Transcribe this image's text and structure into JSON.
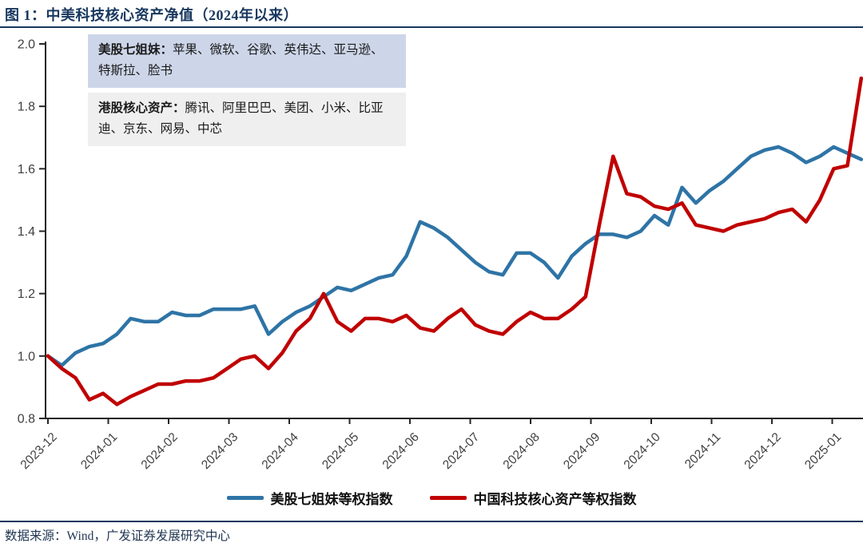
{
  "title": "图 1：中美科技核心资产净值（2024年以来）",
  "source": "数据来源：Wind，广发证券发展研究中心",
  "info_boxes": [
    {
      "label": "美股七姐妹：",
      "text": "苹果、微软、谷歌、英伟达、亚马逊、特斯拉、脸书",
      "bg": "#cdd6e9"
    },
    {
      "label": "港股核心资产：",
      "text": "腾讯、阿里巴巴、美团、小米、比亚迪、京东、网易、中芯",
      "bg": "#efefef"
    }
  ],
  "colors": {
    "title_navy": "#17375e",
    "axis": "#262626",
    "tick_text": "#3f3f3f",
    "us_line": "#2e74a6",
    "cn_line": "#c00000"
  },
  "chart_data": {
    "type": "line",
    "title": "中美科技核心资产净值（2024年以来）",
    "xlabel": "",
    "ylabel": "",
    "ylim": [
      0.8,
      2.0
    ],
    "y_ticks": [
      0.8,
      1.0,
      1.2,
      1.4,
      1.6,
      1.8,
      2.0
    ],
    "x_tick_labels": [
      "2023-12",
      "2024-01",
      "2024-02",
      "2024-03",
      "2024-04",
      "2024-05",
      "2024-06",
      "2024-07",
      "2024-08",
      "2024-09",
      "2024-10",
      "2024-11",
      "2024-12",
      "2025-01"
    ],
    "grid": false,
    "legend_position": "bottom",
    "x_unit": "week",
    "series": [
      {
        "name": "美股七姐妹等权指数",
        "color": "#2e74a6",
        "values": [
          1.0,
          0.97,
          1.01,
          1.03,
          1.04,
          1.07,
          1.12,
          1.11,
          1.11,
          1.14,
          1.13,
          1.13,
          1.15,
          1.15,
          1.15,
          1.16,
          1.07,
          1.11,
          1.14,
          1.16,
          1.19,
          1.22,
          1.21,
          1.23,
          1.25,
          1.26,
          1.32,
          1.43,
          1.41,
          1.38,
          1.34,
          1.3,
          1.27,
          1.26,
          1.33,
          1.33,
          1.3,
          1.25,
          1.32,
          1.36,
          1.39,
          1.39,
          1.38,
          1.4,
          1.45,
          1.42,
          1.54,
          1.49,
          1.53,
          1.56,
          1.6,
          1.64,
          1.66,
          1.67,
          1.65,
          1.62,
          1.64,
          1.67,
          1.65,
          1.63
        ]
      },
      {
        "name": "中国科技核心资产等权指数",
        "color": "#c00000",
        "values": [
          1.0,
          0.96,
          0.93,
          0.86,
          0.88,
          0.845,
          0.87,
          0.89,
          0.91,
          0.91,
          0.92,
          0.92,
          0.93,
          0.96,
          0.99,
          1.0,
          0.96,
          1.01,
          1.08,
          1.12,
          1.2,
          1.11,
          1.08,
          1.12,
          1.12,
          1.11,
          1.13,
          1.09,
          1.08,
          1.12,
          1.15,
          1.1,
          1.08,
          1.07,
          1.11,
          1.14,
          1.12,
          1.12,
          1.15,
          1.19,
          1.42,
          1.64,
          1.52,
          1.51,
          1.48,
          1.47,
          1.49,
          1.42,
          1.41,
          1.4,
          1.42,
          1.43,
          1.44,
          1.46,
          1.47,
          1.43,
          1.5,
          1.6,
          1.61,
          1.89
        ]
      }
    ]
  }
}
